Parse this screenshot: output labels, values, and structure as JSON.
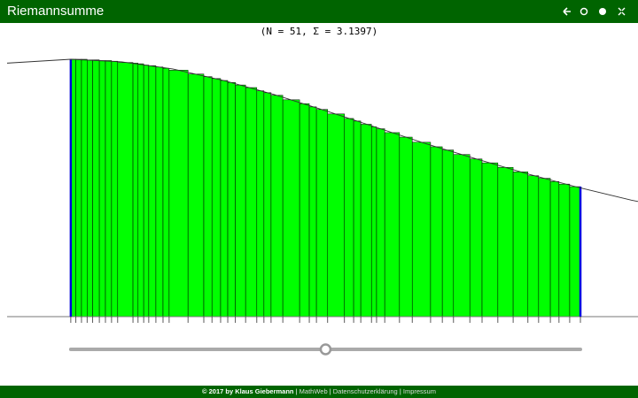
{
  "header": {
    "title": "Riemannsumme"
  },
  "status": "(N = 51, Σ  = 3.1397)",
  "riemann": {
    "xlim": [
      -0.125,
      1.113
    ],
    "ylim": [
      0,
      4
    ],
    "partition": [
      0,
      0.01,
      0.021,
      0.032,
      0.043,
      0.056,
      0.068,
      0.08,
      0.092,
      0.122,
      0.132,
      0.143,
      0.153,
      0.167,
      0.181,
      0.193,
      0.23,
      0.261,
      0.277,
      0.294,
      0.308,
      0.323,
      0.343,
      0.365,
      0.379,
      0.393,
      0.416,
      0.449,
      0.468,
      0.482,
      0.504,
      0.537,
      0.555,
      0.569,
      0.59,
      0.6,
      0.616,
      0.645,
      0.67,
      0.706,
      0.729,
      0.751,
      0.783,
      0.807,
      0.838,
      0.868,
      0.897,
      0.918,
      0.941,
      0.958,
      0.979,
      1
    ],
    "heights": [
      4.0,
      4.0,
      4.0,
      3.99,
      3.99,
      3.98,
      3.98,
      3.97,
      3.95,
      3.94,
      3.93,
      3.91,
      3.9,
      3.88,
      3.86,
      3.83,
      3.77,
      3.73,
      3.7,
      3.67,
      3.64,
      3.6,
      3.56,
      3.51,
      3.48,
      3.44,
      3.37,
      3.31,
      3.26,
      3.22,
      3.15,
      3.08,
      3.04,
      2.99,
      2.95,
      2.92,
      2.86,
      2.79,
      2.71,
      2.64,
      2.59,
      2.52,
      2.45,
      2.39,
      2.32,
      2.25,
      2.19,
      2.15,
      2.1,
      2.06,
      2.02
    ],
    "bar_color": "#00ff00",
    "edge_color": "#0000dd",
    "curve": {
      "x": [
        -0.125,
        0,
        0.1,
        0.2,
        0.3,
        0.4,
        0.5,
        0.6,
        0.7,
        0.8,
        0.9,
        1,
        1.1,
        1.113
      ],
      "y": [
        3.94,
        4,
        3.96,
        3.85,
        3.67,
        3.45,
        3.2,
        2.94,
        2.68,
        2.44,
        2.21,
        2,
        1.81,
        1.79
      ]
    }
  },
  "slider": {
    "value": 51,
    "min": 1,
    "max": 101
  },
  "footer": {
    "credit": "© 2017 by Klaus Giebermann",
    "separator": "|",
    "links": [
      "MathWeb",
      "Datenschutzerklärung",
      "Impressum"
    ]
  }
}
